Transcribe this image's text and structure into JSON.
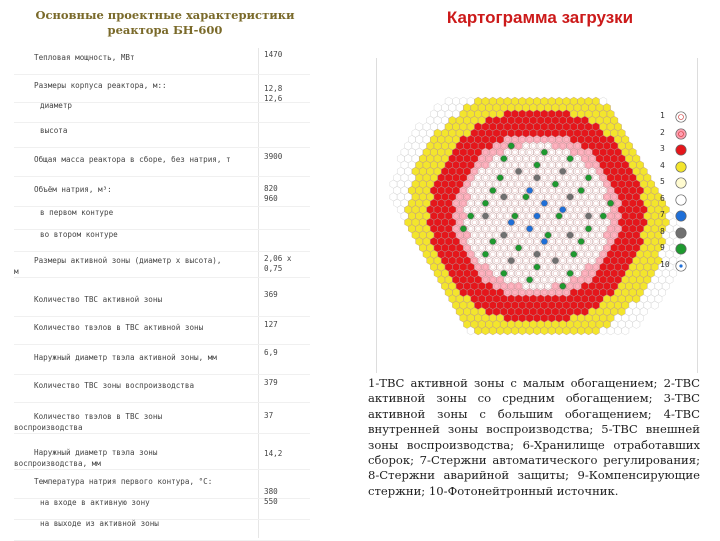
{
  "left_title": "Основные проектные характеристики реактора БН-600",
  "right_title": "Картограмма загрузки",
  "parameters": [
    {
      "label": "Тепловая мощность, МВт",
      "value": "1470"
    },
    {
      "label": "Размеры корпуса реактора, м::",
      "value": "12,8\n12,6"
    },
    {
      "label": "диаметр",
      "value": ""
    },
    {
      "label": "высота",
      "value": ""
    },
    {
      "label": "Общая масса реактора в сборе, без натрия, т",
      "value": "3900"
    },
    {
      "label": "Объём натрия, м³:",
      "value": "820\n960"
    },
    {
      "label": "в первом контуре",
      "value": ""
    },
    {
      "label": "во втором контуре",
      "value": ""
    },
    {
      "label": "Размеры активной зоны (диаметр x высота),\nм",
      "value": "2,06 x\n0,75"
    },
    {
      "label": "Количество ТВС активной зоны",
      "value": "369"
    },
    {
      "label": "Количество твэлов в ТВС активной зоны",
      "value": "127"
    },
    {
      "label": "Наружный диаметр твэла активной зоны, мм",
      "value": "6,9"
    },
    {
      "label": "Количество ТВС зоны воспроизводства",
      "value": "379"
    },
    {
      "label": "Количество твэлов в ТВС зоны\nвоспроизводства",
      "value": "37"
    },
    {
      "label": "Наружный диаметр твэла зоны\nвоспроизводства, мм",
      "value": "14,2"
    },
    {
      "label": "Температура натрия первого контура, °С:",
      "value": ""
    },
    {
      "label": "на входе в активную зону",
      "value": "380\n550"
    },
    {
      "label": "на выходе из активной зоны",
      "value": ""
    }
  ],
  "legend_numbers": [
    "1",
    "2",
    "3",
    "4",
    "5",
    "6",
    "7",
    "8",
    "9",
    "10"
  ],
  "legend_colors": [
    "#ffffff",
    "#ff9fb0",
    "#e5161b",
    "#f3e52c",
    "#fffbd0",
    "#ffffff",
    "#1f6fd8",
    "#707070",
    "#1e9a2f",
    "#ffffff"
  ],
  "colors": {
    "title_left": "#7a6a2a",
    "title_right": "#cc1a1a",
    "core_low": "#ffffff",
    "core_mid": "#ffb3c1",
    "core_high": "#e5161b",
    "blanket_inner": "#f3e52c",
    "blanket_outer": "#ffffff",
    "control_rod": "#1e9a2f",
    "safety_rod": "#707070",
    "neutron_source": "#1f6fd8"
  },
  "caption": "1-ТВС активной зоны с малым обогащением; 2-ТВС активной зоны со средним обогащением; 3-ТВС активной зоны с большим обогащением; 4-ТВС внутренней зоны воспроизводства; 5-ТВС внешней зоны воспроизводства; 6-Хранилище отработавших сборок; 7-Стержни автоматического регулирования; 8-Стержни аварийной защиты; 9-Компенсирующие стержни; 10-Фотонейтронный источник."
}
